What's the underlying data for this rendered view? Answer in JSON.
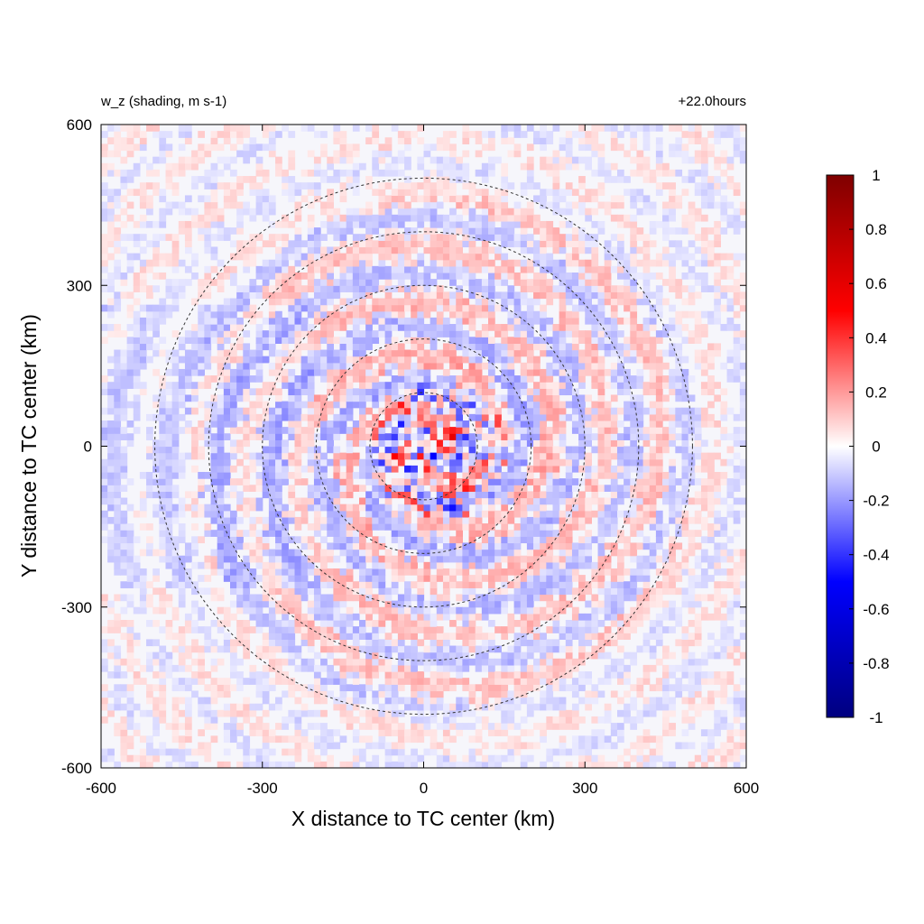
{
  "chart_data": {
    "type": "heatmap",
    "title": "w_z (shading, m s-1)",
    "time_label": "+22.0hours",
    "xlabel": "X distance to TC center (km)",
    "ylabel": "Y distance to TC center (km)",
    "xlim": [
      -600,
      600
    ],
    "ylim": [
      -600,
      600
    ],
    "xticks": [
      "-600",
      "-300",
      "0",
      "300",
      "600"
    ],
    "yticks": [
      "600",
      "300",
      "0",
      "-300",
      "-600"
    ],
    "xtick_values": [
      -600,
      -300,
      0,
      300,
      600
    ],
    "ytick_values": [
      600,
      300,
      0,
      -300,
      -600
    ],
    "range_rings_km": [
      100,
      200,
      300,
      400,
      500
    ],
    "colorbar": {
      "min": -1,
      "max": 1,
      "ticks": [
        "1",
        "0.8",
        "0.6",
        "0.4",
        "0.2",
        "0",
        "-0.2",
        "-0.4",
        "-0.6",
        "-0.8",
        "-1"
      ],
      "tick_values": [
        1,
        0.8,
        0.6,
        0.4,
        0.2,
        0,
        -0.2,
        -0.4,
        -0.6,
        -0.8,
        -1
      ],
      "colors": [
        "#00007f",
        "#0000ff",
        "#ffffff",
        "#ff0000",
        "#7f0000"
      ]
    }
  }
}
